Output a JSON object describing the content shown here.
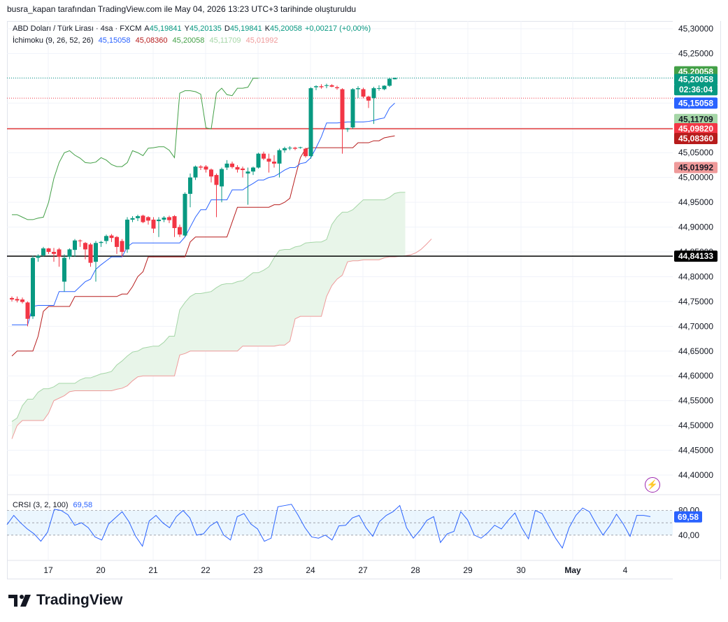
{
  "header": {
    "credit": "busra_kapan tarafından TradingView.com ile May 04, 2026 13:23 UTC+3 tarihinde oluşturuldu"
  },
  "legend": {
    "symbol": "ABD Doları / Türk Lirası · 4sa · FXCM",
    "ohlc": [
      {
        "label": "A",
        "value": "45,19841"
      },
      {
        "label": "Y",
        "value": "45,20135"
      },
      {
        "label": "D",
        "value": "45,19841"
      },
      {
        "label": "K",
        "value": "45,20058"
      }
    ],
    "change": "+0,00217 (+0,00%)",
    "indicator_name": "İchimoku (9, 26, 52, 26)",
    "indicator_values": [
      {
        "value": "45,15058",
        "color": "#2962ff"
      },
      {
        "value": "45,08360",
        "color": "#b71c1c"
      },
      {
        "value": "45,20058",
        "color": "#43a047"
      },
      {
        "value": "45,11709",
        "color": "#a5d6a7"
      },
      {
        "value": "45,01992",
        "color": "#ef9a9a"
      }
    ],
    "rsi_name": "CRSI (3, 2, 100)",
    "rsi_value": "69,58"
  },
  "colors": {
    "up": "#089981",
    "down": "#f23645",
    "tenkan": "#2962ff",
    "kijun": "#b71c1c",
    "chikou": "#43a047",
    "spanA": "#a5d6a7",
    "spanB": "#ef9a9a",
    "cloud": "#e8f5e9"
  },
  "chart_data": [
    {
      "type": "candlestick",
      "ylim": [
        44.35,
        45.31
      ],
      "y_ticks": [
        "45,30000",
        "45,25000",
        "45,20000",
        "45,15000",
        "45,10000",
        "45,05000",
        "45,00000",
        "44,95000",
        "44,90000",
        "44,85000",
        "44,80000",
        "44,75000",
        "44,70000",
        "44,65000",
        "44,60000",
        "44,55000",
        "44,50000",
        "44,45000",
        "44,40000"
      ],
      "x_labels": [
        "17",
        "20",
        "21",
        "22",
        "23",
        "24",
        "27",
        "28",
        "29",
        "30",
        "May",
        "4"
      ],
      "candles": [
        [
          44.757,
          44.76,
          44.75,
          44.754
        ],
        [
          44.755,
          44.76,
          44.748,
          44.752
        ],
        [
          44.754,
          44.758,
          44.746,
          44.749
        ],
        [
          44.748,
          44.75,
          44.7,
          44.715
        ],
        [
          44.72,
          44.842,
          44.715,
          44.838
        ],
        [
          44.838,
          44.845,
          44.83,
          44.842
        ],
        [
          44.843,
          44.86,
          44.84,
          44.857
        ],
        [
          44.857,
          44.858,
          44.846,
          44.85
        ],
        [
          44.85,
          44.858,
          44.83,
          44.846
        ],
        [
          44.855,
          44.858,
          44.82,
          44.84
        ],
        [
          44.79,
          44.845,
          44.77,
          44.838
        ],
        [
          44.84,
          44.857,
          44.835,
          44.855
        ],
        [
          44.854,
          44.876,
          44.84,
          44.873
        ],
        [
          44.873,
          44.875,
          44.86,
          44.872
        ],
        [
          44.868,
          44.87,
          44.835,
          44.855
        ],
        [
          44.865,
          44.868,
          44.82,
          44.828
        ],
        [
          44.83,
          44.872,
          44.79,
          44.868
        ],
        [
          44.868,
          44.872,
          44.86,
          44.87
        ],
        [
          44.872,
          44.885,
          44.866,
          44.882
        ],
        [
          44.883,
          44.886,
          44.87,
          44.878
        ],
        [
          44.88,
          44.882,
          44.846,
          44.86
        ],
        [
          44.872,
          44.876,
          44.84,
          44.85
        ],
        [
          44.855,
          44.92,
          44.848,
          44.915
        ],
        [
          44.915,
          44.922,
          44.91,
          44.918
        ],
        [
          44.918,
          44.925,
          44.912,
          44.922
        ],
        [
          44.923,
          44.925,
          44.908,
          44.91
        ],
        [
          44.92,
          44.922,
          44.905,
          44.913
        ],
        [
          44.915,
          44.92,
          44.888,
          44.897
        ],
        [
          44.912,
          44.92,
          44.88,
          44.915
        ],
        [
          44.915,
          44.922,
          44.91,
          44.919
        ],
        [
          44.92,
          44.923,
          44.908,
          44.914
        ],
        [
          44.922,
          44.924,
          44.88,
          44.898
        ],
        [
          44.9,
          44.905,
          44.88,
          44.885
        ],
        [
          44.883,
          44.97,
          44.88,
          44.967
        ],
        [
          44.967,
          45.008,
          44.94,
          45.0
        ],
        [
          45.0,
          45.024,
          44.995,
          45.022
        ],
        [
          45.022,
          45.025,
          45.015,
          45.02
        ],
        [
          45.022,
          45.025,
          45.01,
          45.016
        ],
        [
          45.016,
          45.018,
          44.99,
          45.002
        ],
        [
          45.005,
          45.008,
          44.92,
          44.985
        ],
        [
          44.982,
          45.02,
          44.95,
          45.017
        ],
        [
          45.02,
          45.035,
          45.015,
          45.028
        ],
        [
          45.028,
          45.032,
          45.018,
          45.021
        ],
        [
          45.021,
          45.025,
          45.01,
          45.016
        ],
        [
          45.018,
          45.022,
          45.0,
          45.015
        ],
        [
          45.008,
          45.02,
          44.945,
          45.012
        ],
        [
          45.012,
          45.022,
          45.005,
          45.02
        ],
        [
          45.02,
          45.05,
          45.018,
          45.048
        ],
        [
          45.048,
          45.052,
          45.035,
          45.038
        ],
        [
          45.038,
          45.048,
          45.01,
          45.032
        ],
        [
          45.032,
          45.045,
          45.02,
          45.028
        ],
        [
          45.028,
          45.058,
          45.0,
          45.055
        ],
        [
          45.055,
          45.062,
          45.05,
          45.059
        ],
        [
          45.059,
          45.063,
          45.055,
          45.06
        ],
        [
          45.06,
          45.062,
          45.055,
          45.058
        ],
        [
          45.06,
          45.062,
          45.058,
          45.061
        ],
        [
          45.058,
          45.06,
          45.04,
          45.043
        ],
        [
          45.043,
          45.182,
          45.038,
          45.18
        ],
        [
          45.182,
          45.186,
          45.176,
          45.184
        ],
        [
          45.184,
          45.188,
          45.179,
          45.182
        ],
        [
          45.185,
          45.189,
          45.18,
          45.186
        ],
        [
          45.186,
          45.188,
          45.182,
          45.183
        ],
        [
          45.182,
          45.185,
          45.177,
          45.18
        ],
        [
          45.178,
          45.18,
          45.048,
          45.097
        ],
        [
          45.097,
          45.1,
          45.092,
          45.099
        ],
        [
          45.101,
          45.18,
          45.098,
          45.178
        ],
        [
          45.178,
          45.184,
          45.16,
          45.18
        ],
        [
          45.178,
          45.181,
          45.16,
          45.163
        ],
        [
          45.163,
          45.165,
          45.14,
          45.155
        ],
        [
          45.16,
          45.183,
          45.108,
          45.18
        ],
        [
          45.18,
          45.186,
          45.175,
          45.18
        ],
        [
          45.178,
          45.186,
          45.176,
          45.185
        ],
        [
          45.185,
          45.201,
          45.183,
          45.199
        ],
        [
          45.198,
          45.201,
          45.198,
          45.201
        ]
      ],
      "tenkan": [
        44.703,
        44.703,
        44.703,
        44.703,
        44.74,
        44.742,
        44.742,
        44.742,
        44.742,
        44.77,
        44.77,
        44.77,
        44.77,
        44.78,
        44.79,
        44.795,
        44.815,
        44.824,
        44.832,
        44.84,
        44.84,
        44.84,
        44.86,
        44.868,
        44.868,
        44.868,
        44.868,
        44.868,
        44.868,
        44.868,
        44.868,
        44.868,
        44.868,
        44.88,
        44.9,
        44.92,
        44.935,
        44.935,
        44.955,
        44.955,
        44.955,
        44.955,
        44.975,
        44.975,
        44.975,
        44.982,
        44.988,
        44.995,
        44.995,
        45.0,
        45.002,
        45.008,
        45.015,
        45.02,
        45.02,
        45.028,
        45.03,
        45.04,
        45.06,
        45.082,
        45.11,
        45.11,
        45.11,
        45.111,
        45.112,
        45.112,
        45.112,
        45.112,
        45.113,
        45.115,
        45.118,
        45.12,
        45.14,
        45.15
      ],
      "kijun": [
        44.64,
        44.65,
        44.65,
        44.65,
        44.65,
        44.68,
        44.73,
        44.74,
        44.74,
        44.74,
        44.74,
        44.74,
        44.76,
        44.76,
        44.76,
        44.76,
        44.76,
        44.76,
        44.76,
        44.76,
        44.76,
        44.765,
        44.765,
        44.78,
        44.8,
        44.81,
        44.84,
        44.84,
        44.84,
        44.84,
        44.84,
        44.84,
        44.84,
        44.84,
        44.87,
        44.88,
        44.88,
        44.88,
        44.88,
        44.88,
        44.88,
        44.88,
        44.91,
        44.94,
        44.94,
        44.94,
        44.94,
        44.94,
        44.94,
        44.94,
        44.945,
        44.945,
        44.95,
        44.958,
        45.0,
        45.04,
        45.058,
        45.06,
        45.06,
        45.06,
        45.06,
        45.06,
        45.06,
        45.06,
        45.06,
        45.06,
        45.07,
        45.07,
        45.07,
        45.074,
        45.074,
        45.08,
        45.082,
        45.084
      ],
      "chikou": [
        44.925,
        44.925,
        44.92,
        44.915,
        44.915,
        44.918,
        44.92,
        44.95,
        44.998,
        45.03,
        45.05,
        45.054,
        45.045,
        45.039,
        45.03,
        45.029,
        45.031,
        45.04,
        45.035,
        45.026,
        45.022,
        45.022,
        45.03,
        45.054,
        45.05,
        45.044,
        45.059,
        45.06,
        45.062,
        45.062,
        45.055,
        45.04,
        45.17,
        45.175,
        45.175,
        45.173,
        45.168,
        45.1,
        45.098,
        45.17,
        45.18,
        45.167,
        45.165,
        45.18,
        45.18,
        45.182,
        45.2,
        45.2
      ],
      "spanA": [
        44.508,
        44.515,
        44.54,
        44.553,
        44.553,
        44.567,
        44.574,
        44.574,
        44.578,
        44.585,
        44.585,
        44.585,
        44.585,
        44.592,
        44.596,
        44.596,
        44.6,
        44.604,
        44.606,
        44.609,
        44.622,
        44.63,
        44.64,
        44.648,
        44.65,
        44.656,
        44.658,
        44.66,
        44.66,
        44.668,
        44.68,
        44.68,
        44.733,
        44.748,
        44.76,
        44.766,
        44.766,
        44.768,
        44.77,
        44.778,
        44.784,
        44.786,
        44.786,
        44.79,
        44.792,
        44.8,
        44.808,
        44.808,
        44.813,
        44.82,
        44.838,
        44.853,
        44.855,
        44.855,
        44.86,
        44.862,
        44.868,
        44.869,
        44.87,
        44.87,
        44.875,
        44.905,
        44.92,
        44.93,
        44.93,
        44.935,
        44.945,
        44.955,
        44.955,
        44.955,
        44.955,
        44.955,
        44.96,
        44.968,
        44.97,
        44.97
      ],
      "spanB": [
        44.473,
        44.5,
        44.51,
        44.51,
        44.51,
        44.51,
        44.51,
        44.525,
        44.55,
        44.555,
        44.56,
        44.568,
        44.57,
        44.57,
        44.57,
        44.57,
        44.57,
        44.57,
        44.57,
        44.57,
        44.573,
        44.575,
        44.58,
        44.59,
        44.598,
        44.6,
        44.6,
        44.6,
        44.6,
        44.6,
        44.6,
        44.6,
        44.642,
        44.645,
        44.65,
        44.65,
        44.65,
        44.65,
        44.65,
        44.65,
        44.65,
        44.65,
        44.65,
        44.65,
        44.66,
        44.66,
        44.66,
        44.66,
        44.66,
        44.66,
        44.66,
        44.662,
        44.662,
        44.67,
        44.715,
        44.72,
        44.72,
        44.72,
        44.72,
        44.72,
        44.76,
        44.782,
        44.795,
        44.803,
        44.83,
        44.832,
        44.832,
        44.834,
        44.834,
        44.834,
        44.834,
        44.838,
        44.84,
        44.84,
        44.841,
        44.842,
        44.844,
        44.848,
        44.855,
        44.865,
        44.876
      ],
      "price_lines": [
        {
          "label": "45,09820",
          "value": 45.0982,
          "color": "#e23c3c",
          "style": "solid"
        },
        {
          "label": "44,84133",
          "value": 44.84133,
          "color": "#000000",
          "style": "solid"
        },
        {
          "label": "45,20058",
          "value": 45.20058,
          "color": "#089981",
          "style": "dotted"
        },
        {
          "label": "45,16",
          "value": 45.16,
          "color": "#f23645",
          "style": "dotted"
        }
      ],
      "price_tags": [
        {
          "text": "45,20058",
          "value": 45.213,
          "bg": "#43a047",
          "fg": "#ffffff"
        },
        {
          "text": "45,20058",
          "value": 45.1975,
          "bg": "#089981",
          "fg": "#ffffff"
        },
        {
          "text": "02:36:04",
          "value": 45.177,
          "bg": "#089981",
          "fg": "#ffffff"
        },
        {
          "text": "45,15058",
          "value": 45.15,
          "bg": "#2962ff",
          "fg": "#ffffff"
        },
        {
          "text": "45,11709",
          "value": 45.117,
          "bg": "#a5d6a7",
          "fg": "#131722"
        },
        {
          "text": "45,09820",
          "value": 45.0982,
          "bg": "#f23645",
          "fg": "#ffffff"
        },
        {
          "text": "45,08360",
          "value": 45.0785,
          "bg": "#b71c1c",
          "fg": "#ffffff"
        },
        {
          "text": "45,01992",
          "value": 45.01992,
          "bg": "#ef9a9a",
          "fg": "#131722"
        },
        {
          "text": "44,84133",
          "value": 44.84133,
          "bg": "#000000",
          "fg": "#ffffff"
        }
      ]
    },
    {
      "type": "line",
      "name": "CRSI (3, 2, 100)",
      "ylim": [
        0,
        100
      ],
      "y_ticks": [
        "80,00",
        "40,00"
      ],
      "bands": [
        80,
        60,
        40
      ],
      "current": "69,58",
      "values": [
        57,
        72,
        60,
        50,
        42,
        30,
        45,
        82,
        80,
        73,
        56,
        60,
        52,
        37,
        32,
        58,
        68,
        78,
        62,
        38,
        22,
        63,
        72,
        60,
        52,
        70,
        80,
        68,
        40,
        42,
        55,
        62,
        40,
        32,
        70,
        75,
        58,
        50,
        30,
        35,
        86,
        88,
        90,
        72,
        52,
        37,
        35,
        40,
        32,
        55,
        56,
        68,
        72,
        52,
        38,
        62,
        72,
        78,
        88,
        52,
        35,
        48,
        64,
        70,
        28,
        42,
        46,
        78,
        65,
        40,
        35,
        44,
        56,
        50,
        64,
        76,
        52,
        34,
        80,
        75,
        55,
        35,
        19,
        52,
        72,
        84,
        78,
        58,
        40,
        55,
        74,
        58,
        38,
        72,
        72,
        70
      ]
    }
  ]
}
